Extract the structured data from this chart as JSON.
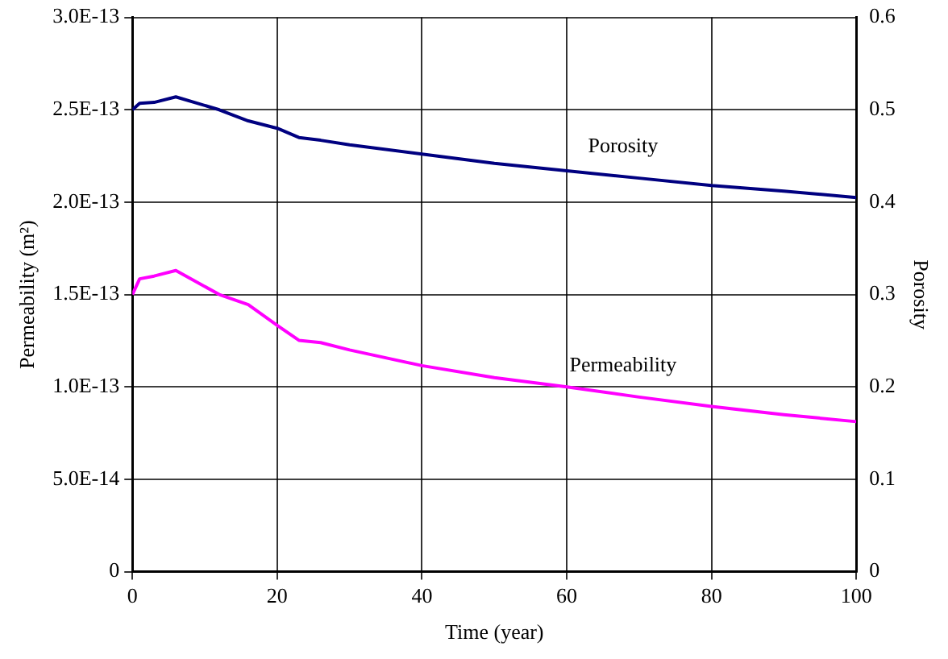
{
  "chart_data": {
    "type": "line",
    "xlabel": "Time (year)",
    "ylabel": "Permeability (m²)",
    "y2label": "Porosity",
    "x": [
      0,
      1,
      3,
      6,
      12,
      16,
      20,
      23,
      26,
      30,
      40,
      50,
      60,
      70,
      80,
      90,
      100
    ],
    "series": [
      {
        "name": "Porosity",
        "color": "#000080",
        "axis": "y2",
        "values": [
          0.5,
          0.507,
          0.508,
          0.514,
          0.5,
          0.488,
          0.48,
          0.47,
          0.467,
          0.462,
          0.452,
          0.442,
          0.434,
          0.426,
          0.418,
          0.412,
          0.405
        ]
      },
      {
        "name": "Permeability",
        "color": "#ff00ff",
        "axis": "y",
        "values": [
          1.5e-13,
          1.585e-13,
          1.6e-13,
          1.63e-13,
          1.5e-13,
          1.445e-13,
          1.333e-13,
          1.252e-13,
          1.24e-13,
          1.2e-13,
          1.115e-13,
          1.05e-13,
          1e-13,
          9.45e-14,
          8.94e-14,
          8.5e-14,
          8.12e-14
        ]
      }
    ],
    "xlim": [
      0,
      100
    ],
    "xticks": [
      0,
      20,
      40,
      60,
      80,
      100
    ],
    "ylim": [
      0,
      3e-13
    ],
    "yticks": [
      0,
      {
        "value": 5e-14,
        "label": "5.0E-14"
      },
      {
        "value": 1e-13,
        "label": "1.0E-13"
      },
      {
        "value": 1.5e-13,
        "label": "1.5E-13"
      },
      {
        "value": 2e-13,
        "label": "2.0E-13"
      },
      {
        "value": 2.5e-13,
        "label": "2.5E-13"
      },
      {
        "value": 3e-13,
        "label": "3.0E-13"
      }
    ],
    "y2lim": [
      0,
      0.6
    ],
    "y2ticks": [
      0,
      0.1,
      0.2,
      0.3,
      0.4,
      0.5,
      0.6
    ],
    "grid": true,
    "legend": false,
    "marker": "none",
    "line_style": "solid"
  }
}
